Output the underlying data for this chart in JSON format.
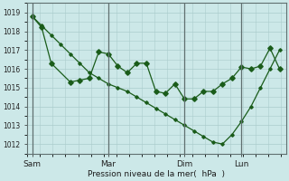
{
  "bg_color": "#cce8e8",
  "grid_color": "#aacccc",
  "line_color": "#1a5c1a",
  "ylim": [
    1011.5,
    1019.5
  ],
  "yticks": [
    1012,
    1013,
    1014,
    1015,
    1016,
    1017,
    1018,
    1019
  ],
  "xtick_labels": [
    "Sam",
    "Mar",
    "Dim",
    "Lun"
  ],
  "xtick_positions": [
    0,
    48,
    96,
    132
  ],
  "xlabel": "Pression niveau de la mer(  hPa  )",
  "line_A_x": [
    0,
    6,
    12,
    18,
    24,
    30,
    36,
    42,
    48,
    54,
    60,
    66,
    72,
    78,
    84,
    90,
    96,
    102,
    108,
    114,
    120,
    126,
    132,
    138,
    144,
    150,
    156
  ],
  "line_A_y": [
    1018.8,
    1018.3,
    1017.8,
    1017.3,
    1016.8,
    1016.3,
    1015.8,
    1015.5,
    1015.2,
    1015.0,
    1014.8,
    1014.5,
    1014.2,
    1013.9,
    1013.6,
    1013.3,
    1013.0,
    1012.7,
    1012.4,
    1012.1,
    1012.0,
    1012.5,
    1013.2,
    1014.0,
    1015.0,
    1016.0,
    1017.0
  ],
  "line_B_x": [
    0,
    6,
    12,
    24,
    30,
    36,
    42,
    48,
    54,
    60,
    66,
    72,
    78,
    84,
    90,
    96,
    102,
    108,
    114,
    120,
    126,
    132,
    138,
    144,
    150,
    156
  ],
  "line_B_y": [
    1018.8,
    1018.2,
    1016.3,
    1015.3,
    1015.4,
    1015.5,
    1016.9,
    1016.8,
    1016.15,
    1015.8,
    1016.3,
    1016.3,
    1014.8,
    1014.7,
    1015.2,
    1014.4,
    1014.4,
    1014.8,
    1014.8,
    1015.2,
    1015.5,
    1016.1,
    1016.0,
    1016.15,
    1017.1,
    1016.0
  ]
}
